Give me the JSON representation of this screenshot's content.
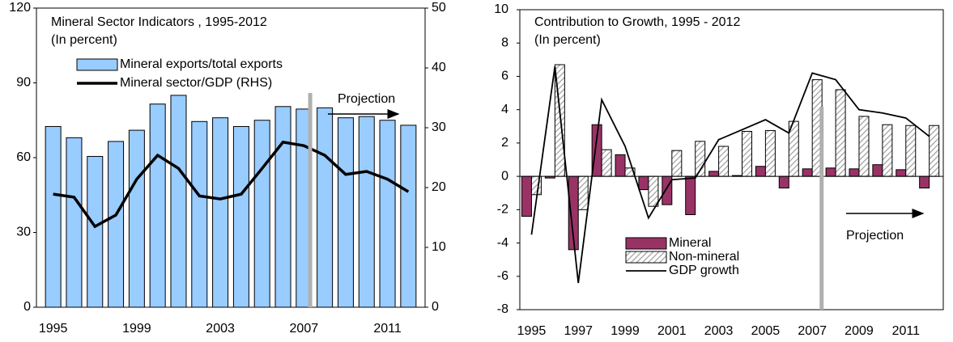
{
  "chart_data": [
    {
      "type": "bar",
      "title": "Mineral Sector Indicators , 1995-2012",
      "subtitle": "(In percent)",
      "x": [
        1995,
        1996,
        1997,
        1998,
        1999,
        2000,
        2001,
        2002,
        2003,
        2004,
        2005,
        2006,
        2007,
        2008,
        2009,
        2010,
        2011,
        2012
      ],
      "xlim": [
        1994.2,
        2012.8
      ],
      "xticks": [
        1995,
        1999,
        2003,
        2007,
        2011
      ],
      "ylim": [
        0,
        120
      ],
      "yticks": [
        0,
        30,
        60,
        90,
        120
      ],
      "y2lim": [
        0,
        50
      ],
      "y2ticks": [
        0,
        10,
        20,
        30,
        40,
        50
      ],
      "series": [
        {
          "name": "Mineral exports/total exports",
          "type": "bar",
          "color": "#99ccff",
          "values": [
            72.5,
            68,
            60.5,
            66.5,
            71,
            81.5,
            85,
            74.5,
            76,
            72.5,
            75,
            80.5,
            79.5,
            80,
            76,
            76.5,
            75,
            73
          ]
        },
        {
          "name": "Mineral sector/GDP (RHS)",
          "type": "line",
          "axis": "y2",
          "color": "#000000",
          "values": [
            18.9,
            18.4,
            13.5,
            15.4,
            21.4,
            25.4,
            23.2,
            18.6,
            18.1,
            18.9,
            23.2,
            27.6,
            27,
            25.4,
            22.2,
            22.7,
            21.4,
            19.3
          ]
        }
      ],
      "legend": "upper-left",
      "annotation": {
        "text": "Projection",
        "x": 2007.3
      }
    },
    {
      "type": "bar",
      "title": "Contribution to Growth, 1995 - 2012",
      "subtitle": "(In percent)",
      "x": [
        1995,
        1996,
        1997,
        1998,
        1999,
        2000,
        2001,
        2002,
        2003,
        2004,
        2005,
        2006,
        2007,
        2008,
        2009,
        2010,
        2011,
        2012
      ],
      "xlim": [
        1994.5,
        2012.6
      ],
      "xticks": [
        1995,
        1997,
        1999,
        2001,
        2003,
        2005,
        2007,
        2009,
        2011
      ],
      "ylim": [
        -8,
        10
      ],
      "yticks": [
        -8,
        -6,
        -4,
        -2,
        0,
        2,
        4,
        6,
        8,
        10
      ],
      "series": [
        {
          "name": "Mineral",
          "type": "bar",
          "color": "#993366",
          "values": [
            -2.4,
            -0.1,
            -4.4,
            3.1,
            1.3,
            -0.8,
            -1.7,
            -2.3,
            0.3,
            0.05,
            0.6,
            -0.7,
            0.45,
            0.5,
            0.45,
            0.7,
            0.4,
            -0.7
          ]
        },
        {
          "name": "Non-mineral",
          "type": "bar",
          "color": "#a0a0a0",
          "hatch": true,
          "values": [
            -1.1,
            6.7,
            -2.0,
            1.6,
            0.5,
            -1.8,
            1.55,
            2.1,
            1.8,
            2.7,
            2.75,
            3.3,
            5.8,
            5.2,
            3.6,
            3.1,
            3.05,
            3.05
          ]
        },
        {
          "name": "GDP growth",
          "type": "line",
          "color": "#000000",
          "values": [
            -3.5,
            6.6,
            -6.4,
            4.6,
            1.8,
            -2.5,
            -0.2,
            -0.1,
            2.2,
            2.8,
            3.4,
            2.6,
            6.2,
            5.8,
            4.0,
            3.8,
            3.5,
            2.4
          ]
        }
      ],
      "legend": "lower-left",
      "annotation": {
        "text": "Projection",
        "x": 2007.4
      }
    }
  ]
}
